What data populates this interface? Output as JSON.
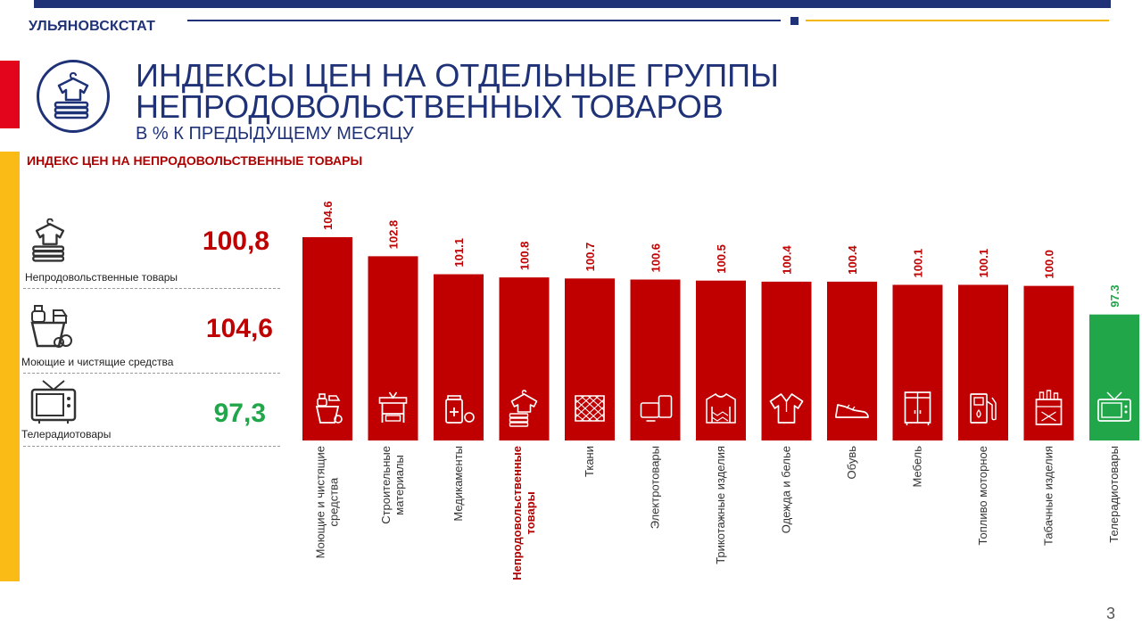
{
  "header": {
    "brand": "УЛЬЯНОВСКСТАТ",
    "title_line1": "ИНДЕКСЫ ЦЕН НА ОТДЕЛЬНЫЕ ГРУППЫ",
    "title_line2": "НЕПРОДОВОЛЬСТВЕННЫХ ТОВАРОВ",
    "subtitle": "В % К ПРЕДЫДУЩЕМУ МЕСЯЦУ"
  },
  "colors": {
    "navy": "#1f3277",
    "red": "#c00000",
    "green": "#21a64a",
    "yellow": "#fbbb17"
  },
  "section_label": "ИНДЕКС ЦЕН НА НЕПРОДОВОЛЬСТВЕННЫЕ ТОВАРЫ",
  "kpis": [
    {
      "label": "Непродовольственные товары",
      "value": "100,8",
      "icon": "clothes-icon",
      "color": "#c00000"
    },
    {
      "label": "Моющие и чистящие средства",
      "value": "104,6",
      "icon": "detergent-icon",
      "color": "#c00000"
    },
    {
      "label": "Телерадиотовары",
      "value": "97,3",
      "icon": "tv-icon",
      "color": "#21a64a"
    }
  ],
  "page_number": "3",
  "chart_data": {
    "type": "bar",
    "title": "ИНДЕКС ЦЕН НА НЕПРОДОВОЛЬСТВЕННЫЕ ТОВАРЫ",
    "categories": [
      "Моющие и чистящие средства",
      "Строительные материалы",
      "Медикаменты",
      "Непродовольственные товары",
      "Ткани",
      "Электротовары",
      "Трикотажные изделия",
      "Одежда и белье",
      "Обувь",
      "Мебель",
      "Топливо моторное",
      "Табачные изделия",
      "Телерадиотовары"
    ],
    "label_lines": [
      [
        "Моющие и чистящие",
        "средства"
      ],
      [
        "Строительные",
        "материалы"
      ],
      [
        "Медикаменты"
      ],
      [
        "Непродовольственные",
        "товары"
      ],
      [
        "Ткани"
      ],
      [
        "Электротовары"
      ],
      [
        "Трикотажные изделия"
      ],
      [
        "Одежда и белье"
      ],
      [
        "Обувь"
      ],
      [
        "Мебель"
      ],
      [
        "Топливо моторное"
      ],
      [
        "Табачные изделия"
      ],
      [
        "Телерадиотовары"
      ]
    ],
    "values": [
      104.6,
      102.8,
      101.1,
      100.8,
      100.7,
      100.6,
      100.5,
      100.4,
      100.4,
      100.1,
      100.1,
      100.0,
      97.3
    ],
    "value_labels": [
      "104.6",
      "102.8",
      "101.1",
      "100.8",
      "100.7",
      "100.6",
      "100.5",
      "100.4",
      "100.4",
      "100.1",
      "100.1",
      "100.0",
      "97.3"
    ],
    "bar_colors": [
      "#c00000",
      "#c00000",
      "#c00000",
      "#c00000",
      "#c00000",
      "#c00000",
      "#c00000",
      "#c00000",
      "#c00000",
      "#c00000",
      "#c00000",
      "#c00000",
      "#21a64a"
    ],
    "highlight_index": 3,
    "icons": [
      "detergent-icon",
      "tools-icon",
      "pills-icon",
      "clothes-icon",
      "fabric-icon",
      "electronics-icon",
      "sweater-icon",
      "shirt-icon",
      "shoe-icon",
      "wardrobe-icon",
      "fuel-icon",
      "cigarettes-icon",
      "tv-icon"
    ],
    "grid": false,
    "legend": "none"
  }
}
